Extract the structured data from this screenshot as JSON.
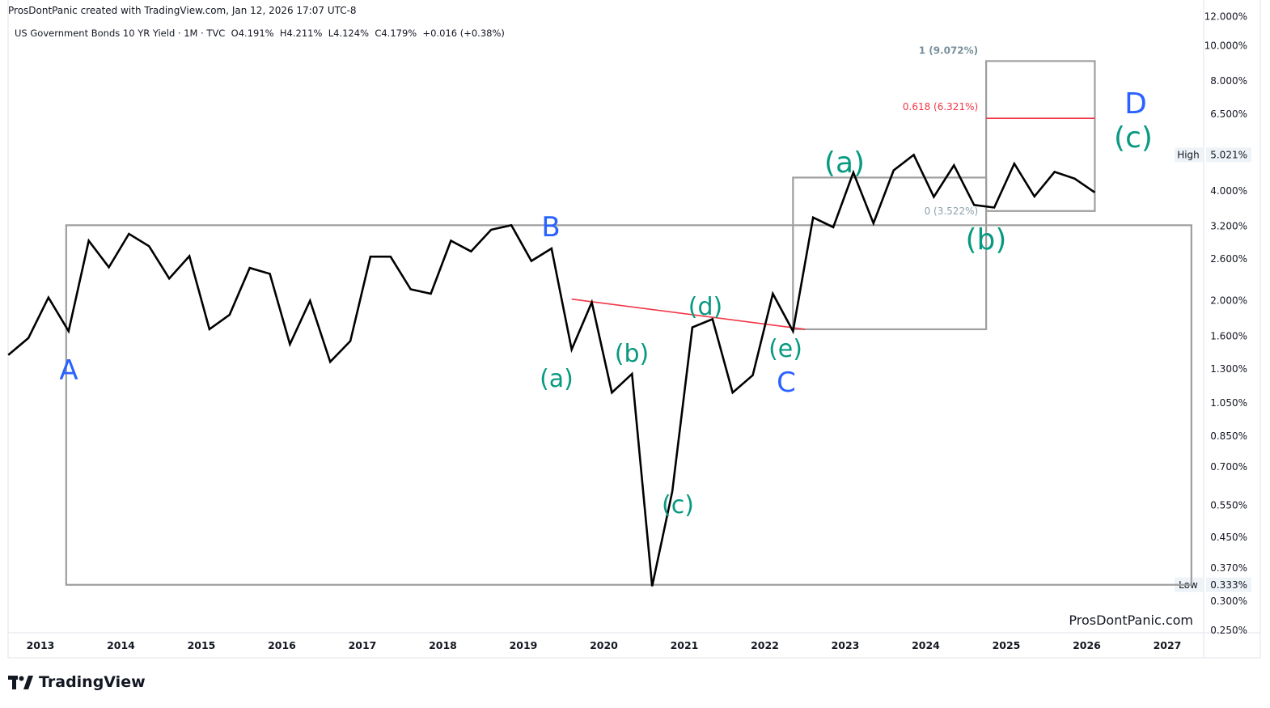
{
  "header": {
    "attribution": "ProsDontPanic created with TradingView.com, Jan 12, 2026 17:07 UTC-8",
    "symbol": "US Government Bonds 10 YR Yield · 1M · TVC",
    "open_label": "O",
    "open": "4.191%",
    "high_label": "H",
    "high": "4.211%",
    "low_label": "L",
    "low": "4.124%",
    "close_label": "C",
    "close": "4.179%",
    "change": "+0.016 (+0.38%)"
  },
  "watermark": "ProsDontPanic.com",
  "brand": "TradingView",
  "chart_data": {
    "type": "line",
    "yscale": "log",
    "ylim": [
      0.25,
      12.0
    ],
    "xlim": [
      2012.6,
      2027.5
    ],
    "x_ticks": [
      "2013",
      "2014",
      "2015",
      "2016",
      "2017",
      "2018",
      "2019",
      "2020",
      "2021",
      "2022",
      "2023",
      "2024",
      "2025",
      "2026",
      "2027"
    ],
    "y_ticks": [
      "12.000%",
      "10.000%",
      "8.000%",
      "6.500%",
      "4.000%",
      "3.200%",
      "2.600%",
      "2.000%",
      "1.600%",
      "1.300%",
      "1.050%",
      "0.850%",
      "0.700%",
      "0.550%",
      "0.450%",
      "0.370%",
      "0.300%",
      "0.250%"
    ],
    "y_tick_values": [
      12.0,
      10.0,
      8.0,
      6.5,
      4.0,
      3.2,
      2.6,
      2.0,
      1.6,
      1.3,
      1.05,
      0.85,
      0.7,
      0.55,
      0.45,
      0.37,
      0.3,
      0.25
    ],
    "high_label": "High",
    "high_value": "5.021%",
    "high": 5.021,
    "low_label": "Low",
    "low_value": "0.333%",
    "low": 0.333,
    "series": [
      {
        "x": [
          2012.6,
          2012.85,
          2013.1,
          2013.35,
          2013.6,
          2013.85,
          2014.1,
          2014.35,
          2014.6,
          2014.85,
          2015.1,
          2015.35,
          2015.6,
          2015.85,
          2016.1,
          2016.35,
          2016.6,
          2016.85,
          2017.1,
          2017.35,
          2017.6,
          2017.85,
          2018.1,
          2018.35,
          2018.6,
          2018.85,
          2019.1,
          2019.35,
          2019.6,
          2019.85,
          2020.1,
          2020.35,
          2020.6,
          2020.85,
          2021.1,
          2021.35,
          2021.6,
          2021.85,
          2022.1,
          2022.35,
          2022.6,
          2022.85,
          2023.1,
          2023.35,
          2023.6,
          2023.85,
          2024.1,
          2024.35,
          2024.6,
          2024.85,
          2025.1,
          2025.35,
          2025.6,
          2025.85,
          2026.1
        ],
        "y": [
          1.42,
          1.58,
          2.04,
          1.65,
          2.92,
          2.47,
          3.05,
          2.82,
          2.3,
          2.65,
          1.67,
          1.83,
          2.46,
          2.37,
          1.52,
          2.0,
          1.36,
          1.55,
          2.64,
          2.64,
          2.15,
          2.09,
          2.92,
          2.73,
          3.13,
          3.22,
          2.57,
          2.78,
          1.47,
          1.98,
          1.12,
          1.26,
          0.33,
          0.6,
          1.69,
          1.78,
          1.12,
          1.25,
          2.09,
          1.65,
          3.38,
          3.18,
          4.49,
          3.26,
          4.55,
          5.02,
          3.85,
          4.7,
          3.66,
          3.6,
          4.75,
          3.86,
          4.51,
          4.32,
          3.96
        ]
      }
    ],
    "trendline": {
      "x": [
        2019.6,
        2022.5
      ],
      "y": [
        2.02,
        1.67
      ]
    },
    "fibonacci": {
      "level_1_label": "1 (9.072%)",
      "level_1": 9.072,
      "level_618_label": "0.618 (6.321%)",
      "level_618": 6.321,
      "level_0_label": "0 (3.522%)",
      "level_0": 3.522
    },
    "wave_labels": {
      "major": [
        "A",
        "B",
        "C",
        "D"
      ],
      "minor": [
        "(a)",
        "(b)",
        "(c)",
        "(d)",
        "(e)",
        "(a)",
        "(b)",
        "(c)"
      ]
    },
    "colors": {
      "line": "#000000",
      "trendline": "#f23645",
      "fib": "#f23645",
      "fib_top": "#78909c",
      "boxes": "#9e9e9e",
      "major_wave": "#2962ff",
      "minor_wave": "#089981",
      "axis_text": "#131722",
      "badge_bg": "#eef3f8"
    }
  }
}
